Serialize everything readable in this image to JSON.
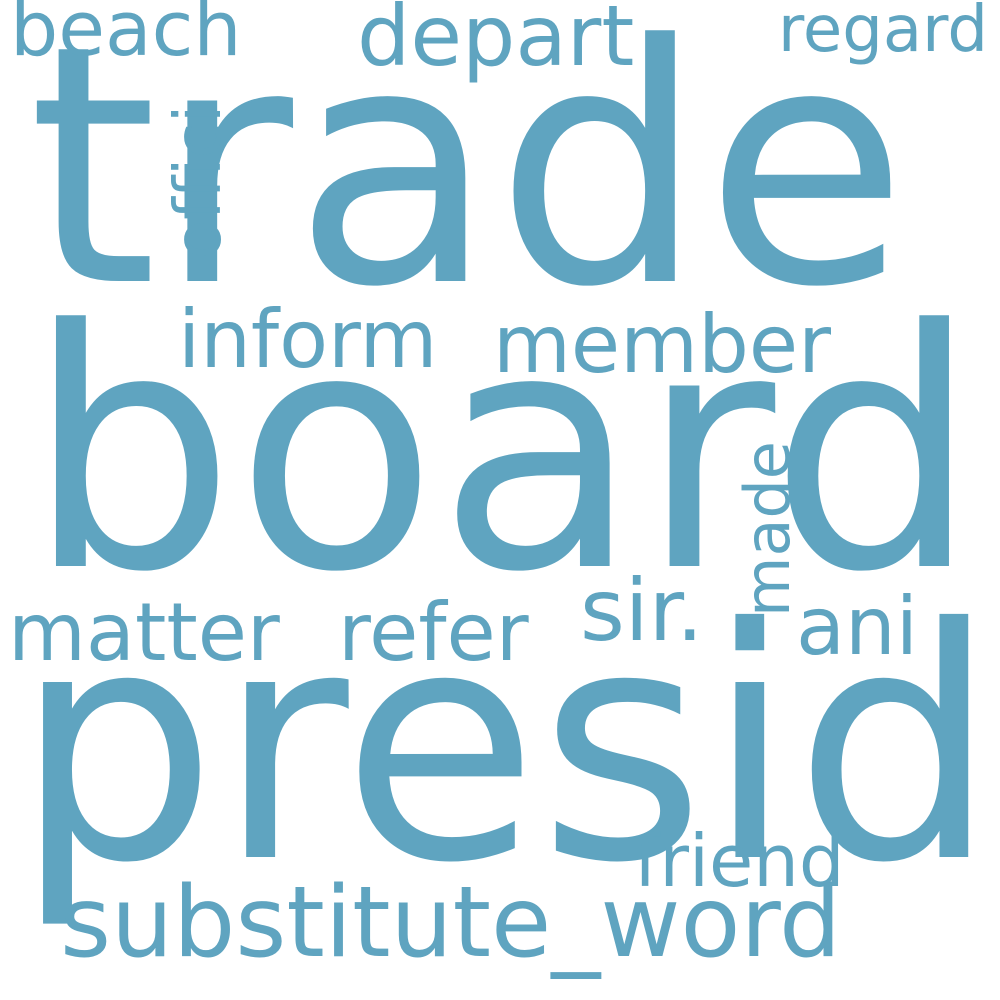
{
  "color": "#5fa4c0",
  "words": [
    {
      "text": "trade"
    },
    {
      "text": "board"
    },
    {
      "text": "presid"
    },
    {
      "text": "substitute_word"
    },
    {
      "text": "beach"
    },
    {
      "text": "depart"
    },
    {
      "text": "regard"
    },
    {
      "text": "offici"
    },
    {
      "text": "inform"
    },
    {
      "text": "member"
    },
    {
      "text": "made"
    },
    {
      "text": "matter"
    },
    {
      "text": "refer"
    },
    {
      "text": "sir."
    },
    {
      "text": "ani"
    },
    {
      "text": "friend"
    }
  ]
}
